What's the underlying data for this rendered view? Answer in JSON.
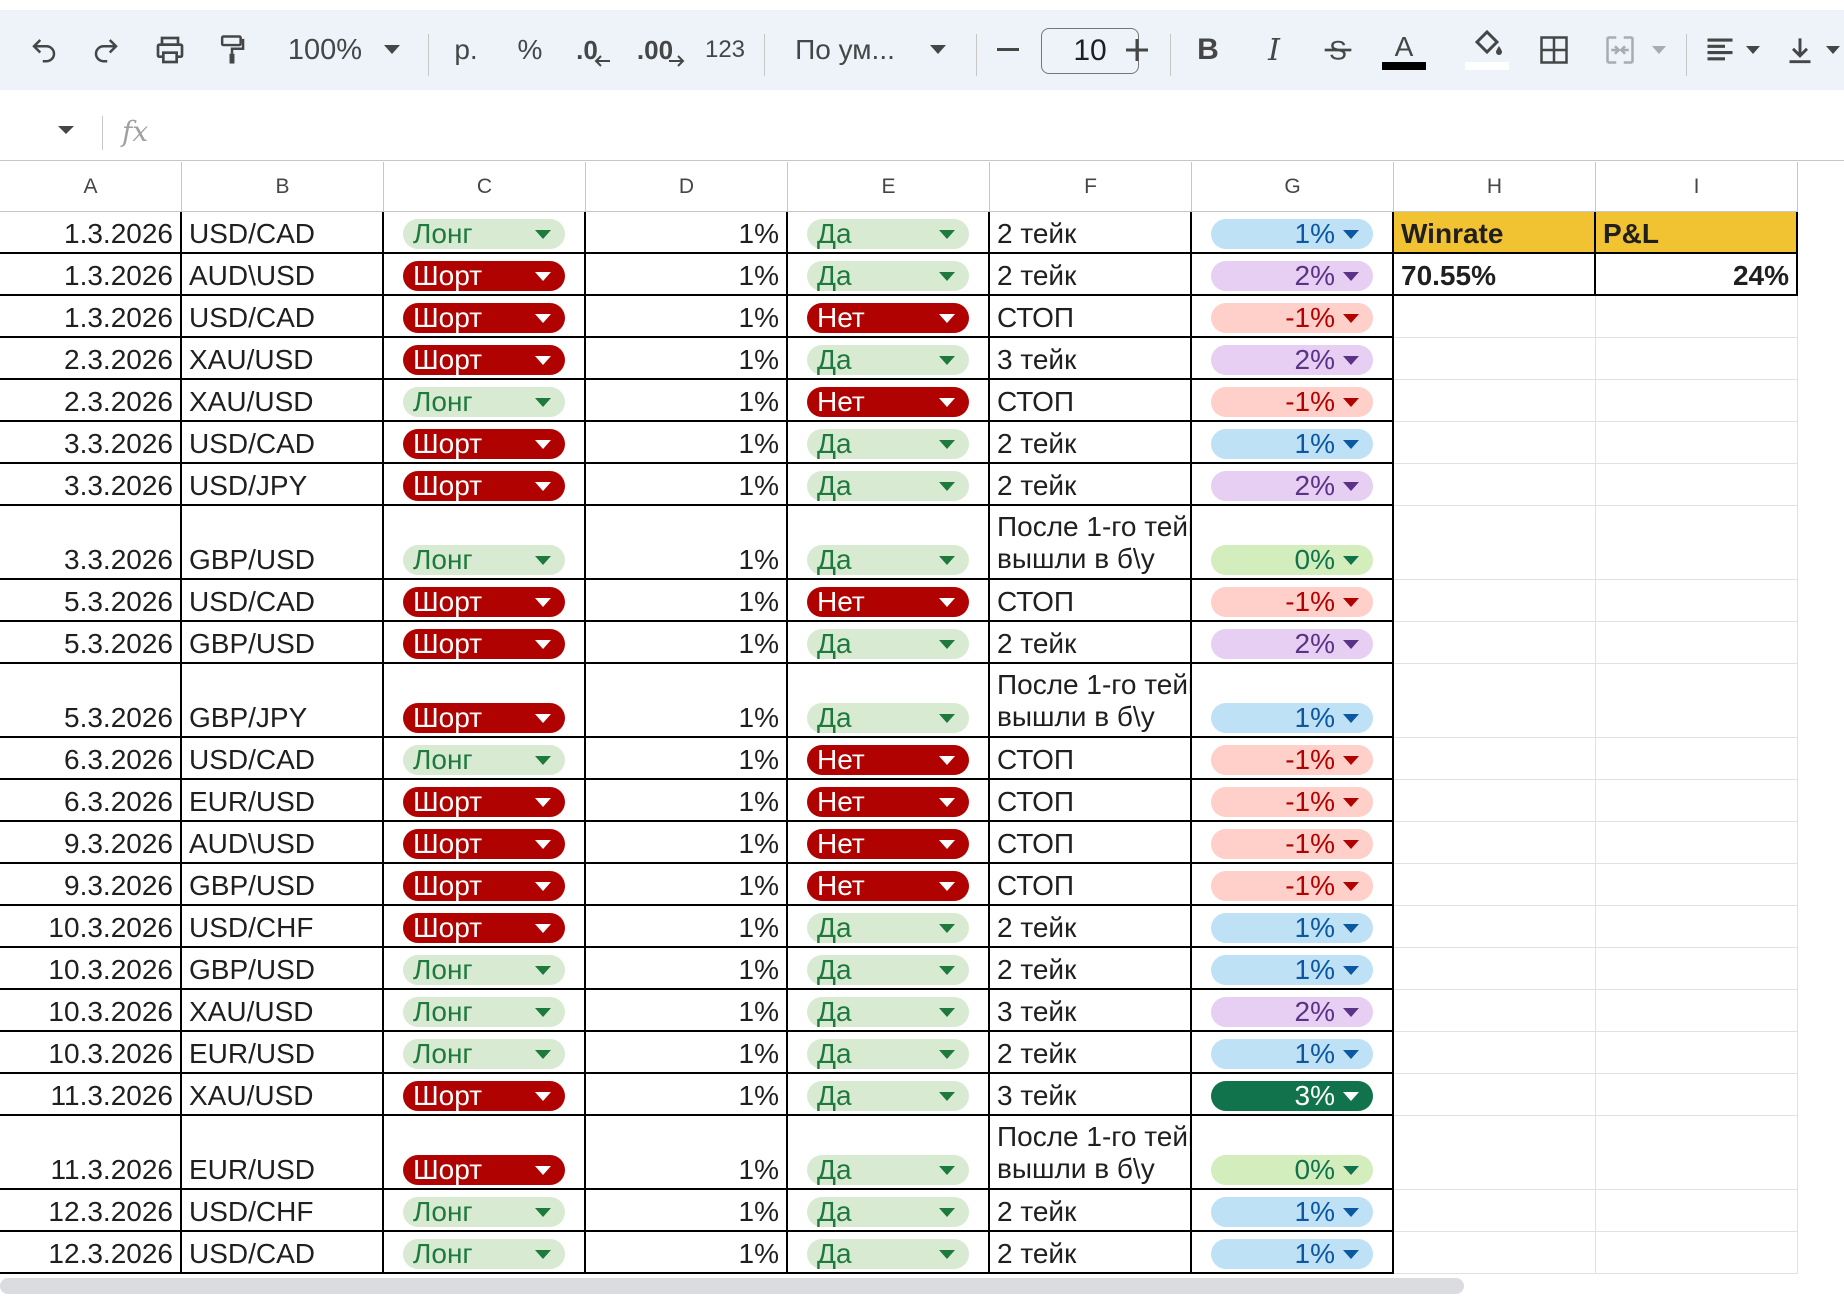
{
  "toolbar": {
    "zoom": "100%",
    "currency": "р.",
    "percent": "%",
    "dec_decrease": ".0",
    "dec_increase": ".00",
    "format_123": "123",
    "font": "По ум...",
    "font_size": "10"
  },
  "formula_bar": {
    "fx": "fx",
    "value": ""
  },
  "columns": [
    "A",
    "B",
    "C",
    "D",
    "E",
    "F",
    "G",
    "H",
    "I"
  ],
  "summary": {
    "winrate_label": "Winrate",
    "pl_label": "P&L",
    "winrate_value": "70.55%",
    "pl_value": "24%",
    "header_color": "#f1c232"
  },
  "chip_styles": {
    "long": {
      "bg": "#d9ead3",
      "fg": "#1e7a3c"
    },
    "short": {
      "bg": "#b10202",
      "fg": "#ffffff"
    },
    "yes": {
      "bg": "#d9ead3",
      "fg": "#1e7a3c"
    },
    "no": {
      "bg": "#b10202",
      "fg": "#ffffff"
    },
    "p1": {
      "bg": "#bfe1f6",
      "fg": "#0b57a0"
    },
    "p2": {
      "bg": "#e6cff2",
      "fg": "#5a3286"
    },
    "m1": {
      "bg": "#ffcfc9",
      "fg": "#b10202"
    },
    "p0": {
      "bg": "#d4edbc",
      "fg": "#11734b"
    },
    "p3": {
      "bg": "#11734b",
      "fg": "#ffffff"
    }
  },
  "rows": [
    {
      "date": "1.3.2026",
      "pair": "USD/CAD",
      "dir": "Лонг",
      "risk": "1%",
      "ok": "Да",
      "result": "2 тейк",
      "pnl": "1%",
      "pnl_style": "p1"
    },
    {
      "date": "1.3.2026",
      "pair": "AUD\\USD",
      "dir": "Шорт",
      "risk": "1%",
      "ok": "Да",
      "result": "2 тейк",
      "pnl": "2%",
      "pnl_style": "p2"
    },
    {
      "date": "1.3.2026",
      "pair": "USD/CAD",
      "dir": "Шорт",
      "risk": "1%",
      "ok": "Нет",
      "result": "СТОП",
      "pnl": "-1%",
      "pnl_style": "m1"
    },
    {
      "date": "2.3.2026",
      "pair": "XAU/USD",
      "dir": "Шорт",
      "risk": "1%",
      "ok": "Да",
      "result": "3 тейк",
      "pnl": "2%",
      "pnl_style": "p2"
    },
    {
      "date": "2.3.2026",
      "pair": "XAU/USD",
      "dir": "Лонг",
      "risk": "1%",
      "ok": "Нет",
      "result": "СТОП",
      "pnl": "-1%",
      "pnl_style": "m1"
    },
    {
      "date": "3.3.2026",
      "pair": "USD/CAD",
      "dir": "Шорт",
      "risk": "1%",
      "ok": "Да",
      "result": "2 тейк",
      "pnl": "1%",
      "pnl_style": "p1"
    },
    {
      "date": "3.3.2026",
      "pair": "USD/JPY",
      "dir": "Шорт",
      "risk": "1%",
      "ok": "Да",
      "result": "2 тейк",
      "pnl": "2%",
      "pnl_style": "p2"
    },
    {
      "date": "3.3.2026",
      "pair": "GBP/USD",
      "dir": "Лонг",
      "risk": "1%",
      "ok": "Да",
      "result": "После 1-го тейк\nвышли в б\\у",
      "pnl": "0%",
      "pnl_style": "p0",
      "tall": true
    },
    {
      "date": "5.3.2026",
      "pair": "USD/CAD",
      "dir": "Шорт",
      "risk": "1%",
      "ok": "Нет",
      "result": "СТОП",
      "pnl": "-1%",
      "pnl_style": "m1"
    },
    {
      "date": "5.3.2026",
      "pair": "GBP/USD",
      "dir": "Шорт",
      "risk": "1%",
      "ok": "Да",
      "result": "2 тейк",
      "pnl": "2%",
      "pnl_style": "p2"
    },
    {
      "date": "5.3.2026",
      "pair": "GBP/JPY",
      "dir": "Шорт",
      "risk": "1%",
      "ok": "Да",
      "result": "После 1-го тейк\nвышли в б\\у",
      "pnl": "1%",
      "pnl_style": "p1",
      "tall": true
    },
    {
      "date": "6.3.2026",
      "pair": "USD/CAD",
      "dir": "Лонг",
      "risk": "1%",
      "ok": "Нет",
      "result": "СТОП",
      "pnl": "-1%",
      "pnl_style": "m1"
    },
    {
      "date": "6.3.2026",
      "pair": "EUR/USD",
      "dir": "Шорт",
      "risk": "1%",
      "ok": "Нет",
      "result": "СТОП",
      "pnl": "-1%",
      "pnl_style": "m1"
    },
    {
      "date": "9.3.2026",
      "pair": "AUD\\USD",
      "dir": "Шорт",
      "risk": "1%",
      "ok": "Нет",
      "result": "СТОП",
      "pnl": "-1%",
      "pnl_style": "m1"
    },
    {
      "date": "9.3.2026",
      "pair": "GBP/USD",
      "dir": "Шорт",
      "risk": "1%",
      "ok": "Нет",
      "result": "СТОП",
      "pnl": "-1%",
      "pnl_style": "m1"
    },
    {
      "date": "10.3.2026",
      "pair": "USD/CHF",
      "dir": "Шорт",
      "risk": "1%",
      "ok": "Да",
      "result": "2 тейк",
      "pnl": "1%",
      "pnl_style": "p1"
    },
    {
      "date": "10.3.2026",
      "pair": "GBP/USD",
      "dir": "Лонг",
      "risk": "1%",
      "ok": "Да",
      "result": "2 тейк",
      "pnl": "1%",
      "pnl_style": "p1"
    },
    {
      "date": "10.3.2026",
      "pair": "XAU/USD",
      "dir": "Лонг",
      "risk": "1%",
      "ok": "Да",
      "result": "3 тейк",
      "pnl": "2%",
      "pnl_style": "p2"
    },
    {
      "date": "10.3.2026",
      "pair": "EUR/USD",
      "dir": "Лонг",
      "risk": "1%",
      "ok": "Да",
      "result": "2 тейк",
      "pnl": "1%",
      "pnl_style": "p1"
    },
    {
      "date": "11.3.2026",
      "pair": "XAU/USD",
      "dir": "Шорт",
      "risk": "1%",
      "ok": "Да",
      "result": "3 тейк",
      "pnl": "3%",
      "pnl_style": "p3"
    },
    {
      "date": "11.3.2026",
      "pair": "EUR/USD",
      "dir": "Шорт",
      "risk": "1%",
      "ok": "Да",
      "result": "После 1-го тейк\nвышли в б\\у",
      "pnl": "0%",
      "pnl_style": "p0",
      "tall": true
    },
    {
      "date": "12.3.2026",
      "pair": "USD/CHF",
      "dir": "Лонг",
      "risk": "1%",
      "ok": "Да",
      "result": "2 тейк",
      "pnl": "1%",
      "pnl_style": "p1"
    },
    {
      "date": "12.3.2026",
      "pair": "USD/CAD",
      "dir": "Лонг",
      "risk": "1%",
      "ok": "Да",
      "result": "2 тейк",
      "pnl": "1%",
      "pnl_style": "p1"
    }
  ]
}
